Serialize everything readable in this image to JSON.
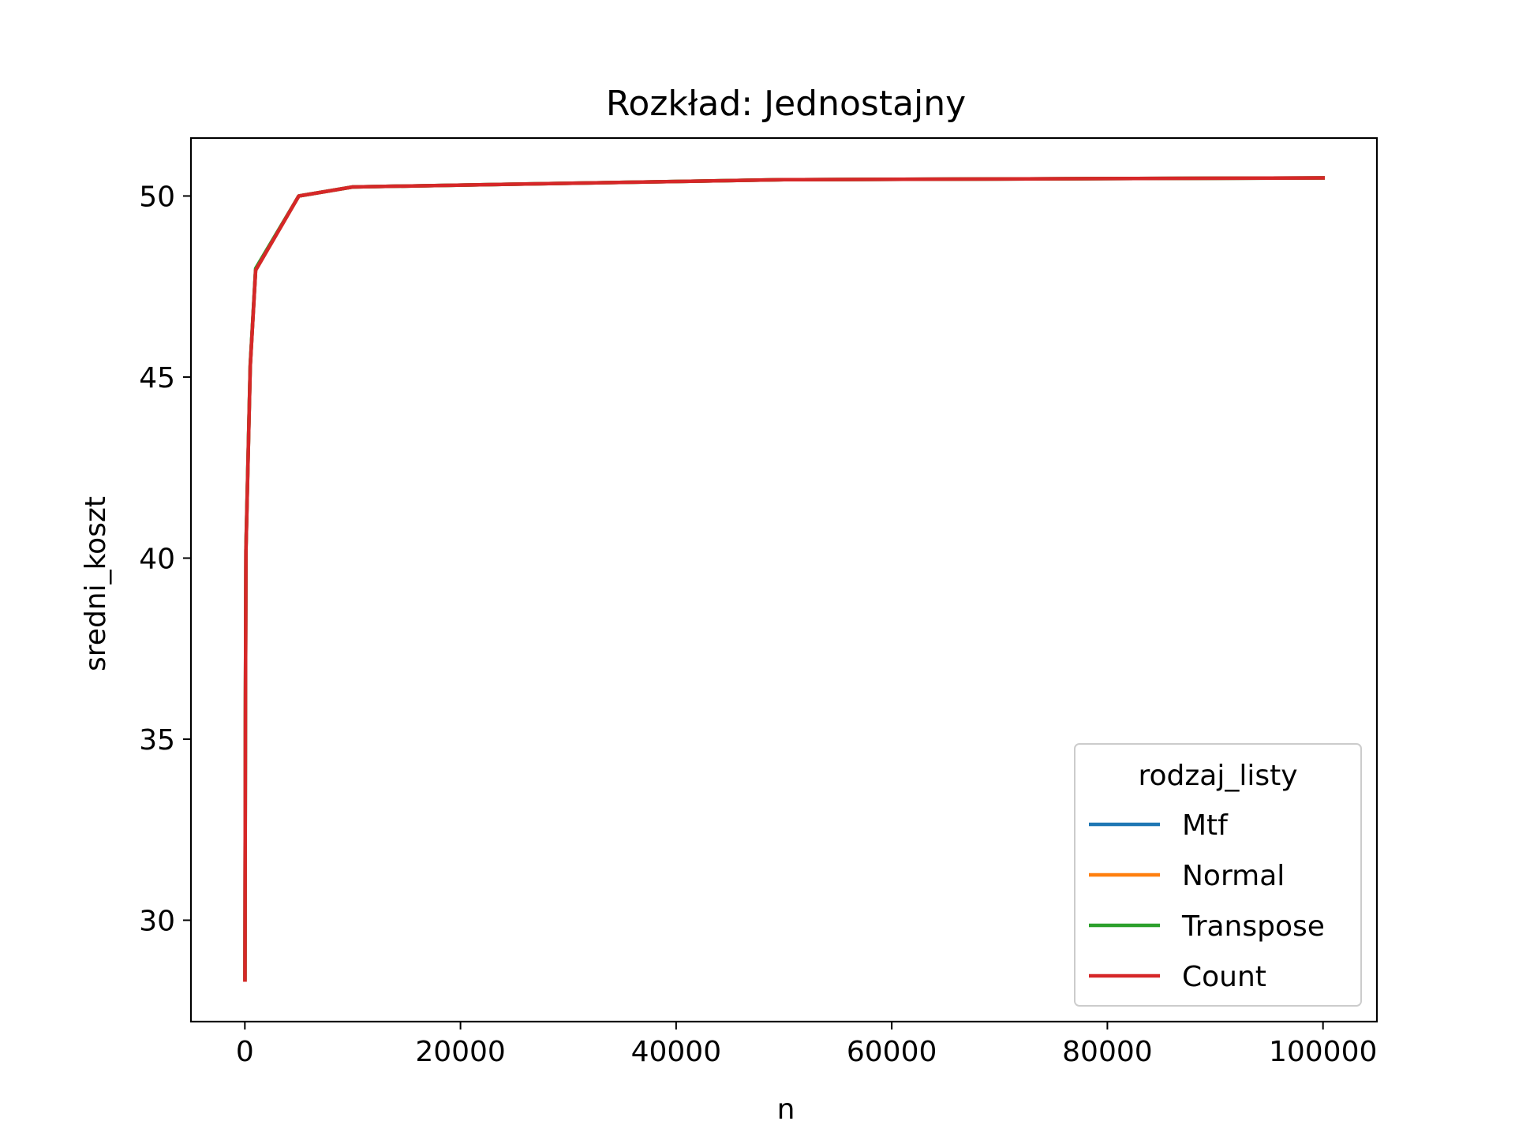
{
  "chart_data": {
    "type": "line",
    "title": "Rozkład: Jednostajny",
    "xlabel": "n",
    "ylabel": "sredni_koszt",
    "xlim": [
      -5000,
      105000
    ],
    "ylim": [
      27.2,
      51.6
    ],
    "xticks": [
      0,
      20000,
      40000,
      60000,
      80000,
      100000
    ],
    "yticks": [
      30,
      35,
      40,
      45,
      50
    ],
    "grid": false,
    "legend": {
      "title": "rodzaj_listy",
      "placement": "lower right"
    },
    "x": [
      10,
      50,
      100,
      500,
      1000,
      5000,
      10000,
      50000,
      100000
    ],
    "series": [
      {
        "name": "Mtf",
        "color": "#1f77b4",
        "values": [
          28.35,
          35.5,
          40.2,
          45.3,
          47.95,
          50.0,
          50.25,
          50.45,
          50.5
        ]
      },
      {
        "name": "Normal",
        "color": "#ff7f0e",
        "values": [
          28.35,
          35.5,
          40.2,
          45.3,
          47.95,
          50.0,
          50.25,
          50.45,
          50.5
        ]
      },
      {
        "name": "Transpose",
        "color": "#2ca02c",
        "values": [
          28.4,
          35.6,
          40.3,
          45.35,
          48.0,
          50.0,
          50.25,
          50.45,
          50.5
        ]
      },
      {
        "name": "Count",
        "color": "#d62728",
        "values": [
          28.35,
          35.5,
          40.2,
          45.3,
          47.95,
          50.0,
          50.25,
          50.45,
          50.5
        ]
      }
    ]
  }
}
